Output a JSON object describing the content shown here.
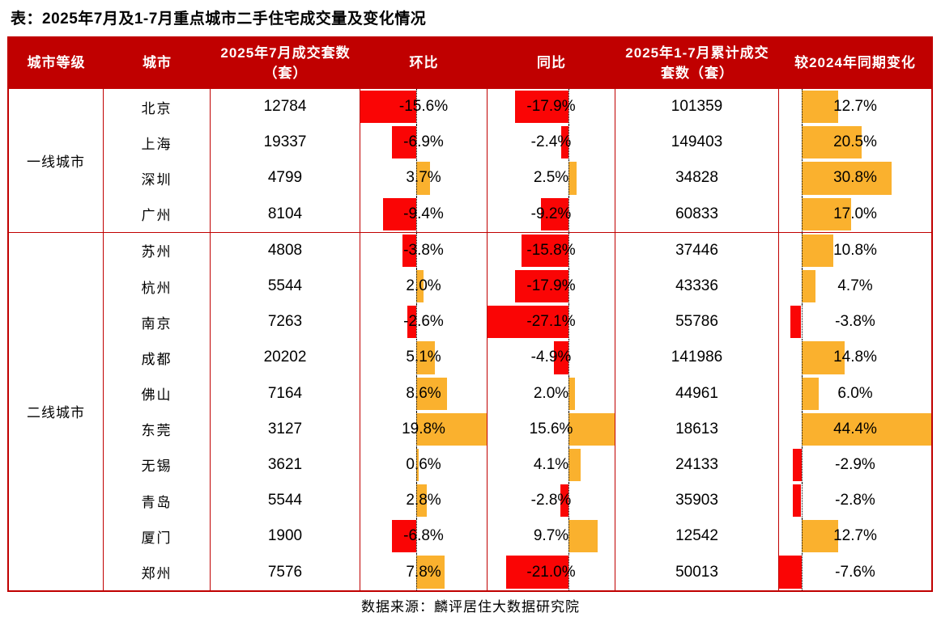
{
  "title": "表：2025年7月及1-7月重点城市二手住宅成交量及变化情况",
  "source": "数据来源：麟评居住大数据研究院",
  "colors": {
    "header_bg": "#C00000",
    "border": "#C00000",
    "negative_bar": "#FA0505",
    "positive_bar": "#FAB12E",
    "header_text": "#FFFFFF",
    "body_text": "#000000"
  },
  "columns": [
    "城市等级",
    "城市",
    "2025年7月成交套数（套）",
    "环比",
    "同比",
    "2025年1-7月累计成交套数（套）",
    "较2024年同期变化"
  ],
  "chart_data": {
    "type": "table",
    "title": "2025年7月及1-7月重点城市二手住宅成交量及变化情况",
    "bar_columns": [
      "mom_pct",
      "yoy_pct",
      "vs2024_pct"
    ],
    "bar_axes": {
      "mom_pct": {
        "min": -15.6,
        "max": 19.8
      },
      "yoy_pct": {
        "min": -27.1,
        "max": 15.6
      },
      "vs2024_pct": {
        "min": -7.6,
        "max": 44.4
      }
    },
    "tiers": [
      {
        "tier": "一线城市",
        "rows": [
          {
            "city": "北京",
            "jul_sales": 12784,
            "mom_pct": -15.6,
            "yoy_pct": -17.9,
            "cum_sales": 101359,
            "vs2024_pct": 12.7
          },
          {
            "city": "上海",
            "jul_sales": 19337,
            "mom_pct": -6.9,
            "yoy_pct": -2.4,
            "cum_sales": 149403,
            "vs2024_pct": 20.5
          },
          {
            "city": "深圳",
            "jul_sales": 4799,
            "mom_pct": 3.7,
            "yoy_pct": 2.5,
            "cum_sales": 34828,
            "vs2024_pct": 30.8
          },
          {
            "city": "广州",
            "jul_sales": 8104,
            "mom_pct": -9.4,
            "yoy_pct": -9.2,
            "cum_sales": 60833,
            "vs2024_pct": 17.0
          }
        ]
      },
      {
        "tier": "二线城市",
        "rows": [
          {
            "city": "苏州",
            "jul_sales": 4808,
            "mom_pct": -3.8,
            "yoy_pct": -15.8,
            "cum_sales": 37446,
            "vs2024_pct": 10.8
          },
          {
            "city": "杭州",
            "jul_sales": 5544,
            "mom_pct": 2.0,
            "yoy_pct": -17.9,
            "cum_sales": 43336,
            "vs2024_pct": 4.7
          },
          {
            "city": "南京",
            "jul_sales": 7263,
            "mom_pct": -2.6,
            "yoy_pct": -27.1,
            "cum_sales": 55786,
            "vs2024_pct": -3.8
          },
          {
            "city": "成都",
            "jul_sales": 20202,
            "mom_pct": 5.1,
            "yoy_pct": -4.9,
            "cum_sales": 141986,
            "vs2024_pct": 14.8
          },
          {
            "city": "佛山",
            "jul_sales": 7164,
            "mom_pct": 8.6,
            "yoy_pct": 2.0,
            "cum_sales": 44961,
            "vs2024_pct": 6.0
          },
          {
            "city": "东莞",
            "jul_sales": 3127,
            "mom_pct": 19.8,
            "yoy_pct": 15.6,
            "cum_sales": 18613,
            "vs2024_pct": 44.4
          },
          {
            "city": "无锡",
            "jul_sales": 3621,
            "mom_pct": 0.6,
            "yoy_pct": 4.1,
            "cum_sales": 24133,
            "vs2024_pct": -2.9
          },
          {
            "city": "青岛",
            "jul_sales": 5544,
            "mom_pct": 2.8,
            "yoy_pct": -2.8,
            "cum_sales": 35903,
            "vs2024_pct": -2.8
          },
          {
            "city": "厦门",
            "jul_sales": 1900,
            "mom_pct": -6.8,
            "yoy_pct": 9.7,
            "cum_sales": 12542,
            "vs2024_pct": 12.7
          },
          {
            "city": "郑州",
            "jul_sales": 7576,
            "mom_pct": 7.8,
            "yoy_pct": -21.0,
            "cum_sales": 50013,
            "vs2024_pct": -7.6
          }
        ]
      }
    ]
  }
}
